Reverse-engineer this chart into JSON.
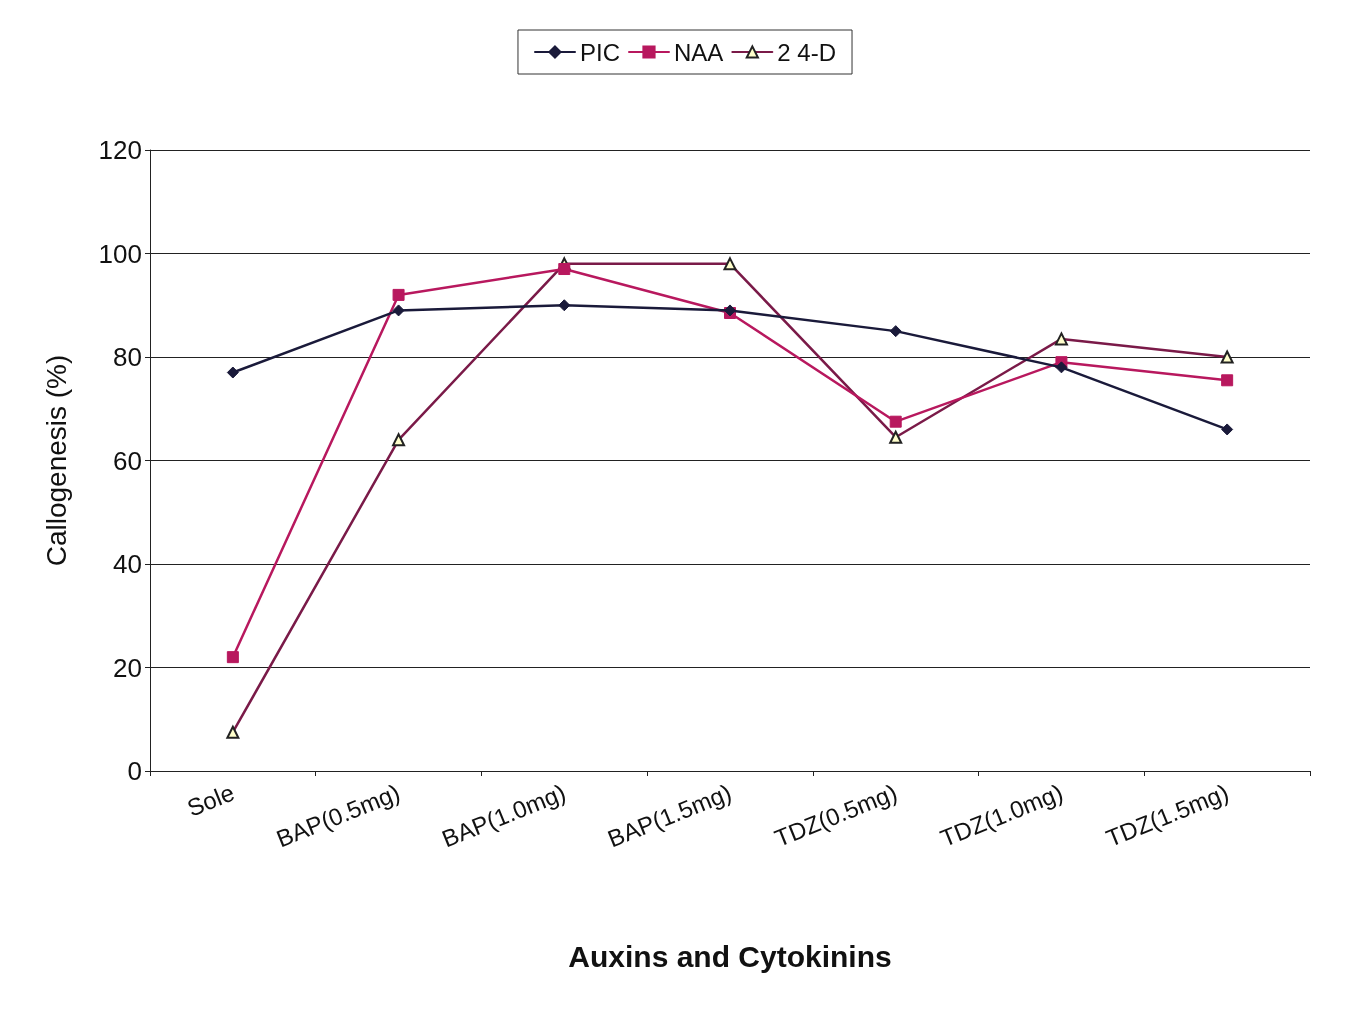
{
  "chart_data": {
    "type": "line",
    "xlabel": "Auxins and Cytokinins",
    "ylabel": "Callogenesis (%)",
    "categories": [
      "Sole",
      "BAP(0.5mg)",
      "BAP(1.0mg)",
      "BAP(1.5mg)",
      "TDZ(0.5mg)",
      "TDZ(1.0mg)",
      "TDZ(1.5mg)"
    ],
    "series": [
      {
        "name": "PIC",
        "color": "#1a1a3a",
        "marker": "diamond",
        "values": [
          77,
          89,
          90,
          89,
          85,
          78,
          66
        ]
      },
      {
        "name": "NAA",
        "color": "#b8185e",
        "marker": "square",
        "values": [
          22,
          92,
          97,
          88.5,
          67.5,
          79,
          75.5
        ]
      },
      {
        "name": "2 4-D",
        "color": "#7a1a48",
        "marker": "triangle",
        "values": [
          7.5,
          64,
          98,
          98,
          64.5,
          83.5,
          80
        ]
      }
    ],
    "ylim": [
      0,
      120
    ],
    "yticks": [
      0,
      20,
      40,
      60,
      80,
      100,
      120
    ],
    "grid": "y",
    "legend": "top",
    "line_style": "solid"
  }
}
